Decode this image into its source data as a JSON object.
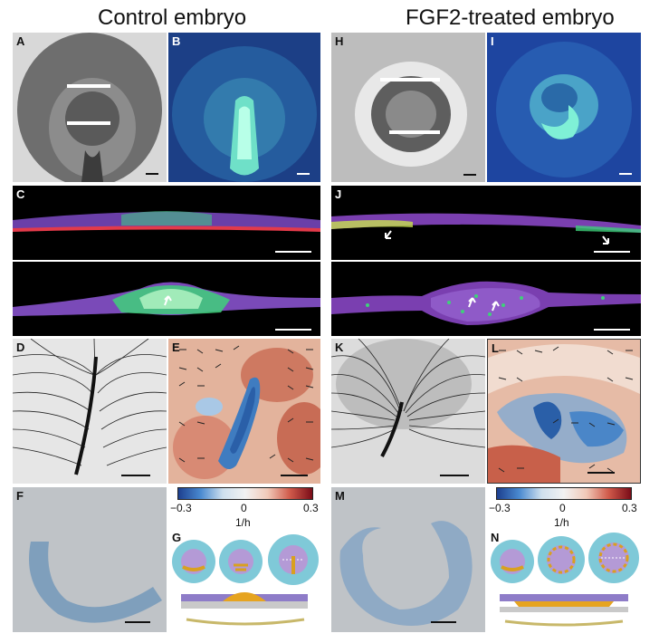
{
  "titles": {
    "control": "Control embryo",
    "fgf2": "FGF2-treated embryo"
  },
  "panels": [
    "A",
    "B",
    "C",
    "D",
    "E",
    "F",
    "G",
    "H",
    "I",
    "J",
    "K",
    "L",
    "M",
    "N"
  ],
  "colorbar": {
    "min": "−0.3",
    "mid": "0",
    "max": "0.3",
    "unit": "1/h",
    "colors": [
      "#1d3f8f",
      "#cfe0ee",
      "#f2f2f2",
      "#d05a4a",
      "#7a0c18"
    ]
  }
}
